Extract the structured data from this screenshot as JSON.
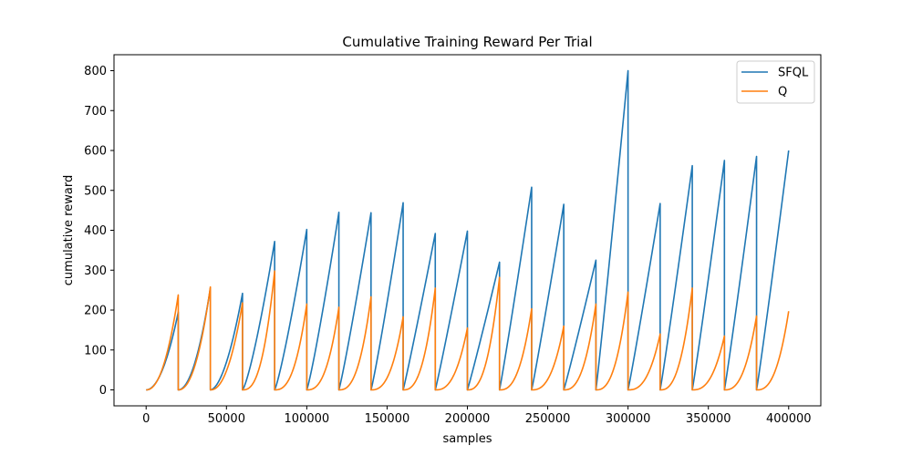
{
  "chart_data": {
    "type": "line",
    "title": "Cumulative Training Reward Per Trial",
    "xlabel": "samples",
    "ylabel": "cumulative reward",
    "xlim": [
      -20000,
      420000
    ],
    "ylim": [
      -40,
      840
    ],
    "xticks": [
      0,
      50000,
      100000,
      150000,
      200000,
      250000,
      300000,
      350000,
      400000
    ],
    "yticks": [
      0,
      100,
      200,
      300,
      400,
      500,
      600,
      700,
      800
    ],
    "grid": false,
    "legend_position": "upper right",
    "trial_length": 20000,
    "series": [
      {
        "name": "SFQL",
        "color": "#1f77b4",
        "trial_peaks": [
          195,
          255,
          242,
          372,
          402,
          445,
          444,
          469,
          392,
          398,
          320,
          508,
          465,
          325,
          800,
          467,
          562,
          575,
          585,
          600
        ],
        "trial_shape_exponents": [
          2.0,
          2.0,
          1.8,
          1.3,
          1.2,
          1.15,
          1.1,
          1.1,
          1.05,
          1.05,
          1.05,
          1.05,
          1.05,
          1.05,
          1.05,
          1.05,
          1.05,
          1.05,
          1.05,
          1.05
        ]
      },
      {
        "name": "Q",
        "color": "#ff7f0e",
        "trial_peaks": [
          238,
          258,
          218,
          298,
          215,
          207,
          233,
          183,
          255,
          155,
          282,
          203,
          160,
          215,
          245,
          140,
          255,
          135,
          185,
          197
        ],
        "trial_shape_exponents": [
          2.2,
          2.2,
          2.2,
          2.6,
          2.6,
          2.6,
          2.6,
          2.6,
          2.6,
          2.6,
          2.6,
          2.6,
          2.6,
          2.6,
          2.6,
          2.6,
          2.6,
          2.6,
          2.6,
          2.6
        ]
      }
    ]
  }
}
